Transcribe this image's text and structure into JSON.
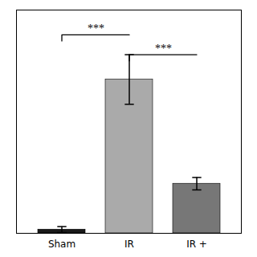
{
  "chart_data": {
    "type": "bar",
    "categories": [
      "Sham",
      "IR",
      "IR +"
    ],
    "values": [
      1.5,
      62.0,
      20.0
    ],
    "errors": [
      1.2,
      10.0,
      2.5
    ],
    "colors": [
      "#1a1a1a",
      "#aaaaaa",
      "#777777"
    ],
    "ylim": [
      0,
      90
    ],
    "tick_labels": "x",
    "annotations": [
      {
        "label": "***",
        "x1": "Sham",
        "x2": "IR",
        "y": 80
      },
      {
        "label": "***",
        "x1": "IR",
        "x2": "IR +",
        "y": 72
      }
    ]
  }
}
